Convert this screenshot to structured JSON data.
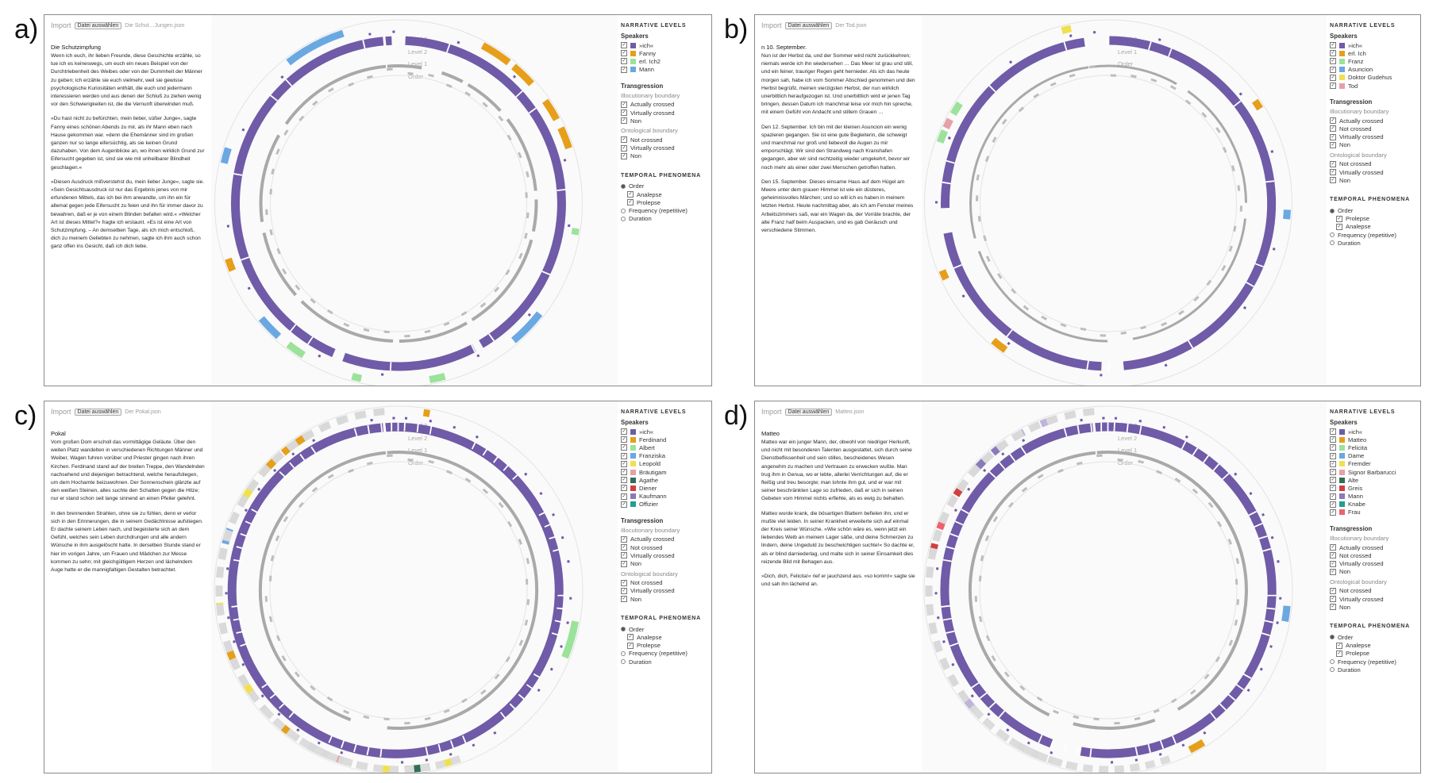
{
  "panels": [
    {
      "letter": "a)",
      "import_label": "Import",
      "button_label": "Datei auswählen",
      "file_name": "Die Schut…Jungen.json",
      "title": "Die Schutzimpfung",
      "text_paragraphs": [
        "Wenn ich euch, ihr lieben Freunde, diese Geschichte erzähle, so tue ich es keineswegs, um euch ein neues Beispiel von der Durchtriebenheit des Weibes oder von der Dummheit der Männer zu geben; ich erzähle sie euch vielmehr, weil sie gewisse psychologische Kuriositäten enthält, die euch und jedermann interessieren werden und aus denen der Schluß zu ziehen wenig vor den Schwierigkeiten ist, die die Vernunft überwinden muß.",
        "»Du hast nicht zu befürchten, mein lieber, süßer Junge«, sagte Fanny eines schönen Abends zu mir, als ihr Mann eben nach Hause gekommen war. »denn die Ehemänner sind im großen ganzen nur so lange eifersüchtig, als sie keinen Grund dazuhaben. Von dem Augenblicke an, wo ihnen wirklich Grund zur Eifersucht gegeben ist, sind sie wie mit unheilbarer Blindheit geschlagen.«",
        "»Diesen Ausdruck mißverstehst du, mein lieber Junge«, sagte sie. »Sein Gesichtsausdruck ist nur das Ergebnis jenes von mir erfundenen Mittels, das ich bei ihm anwandte, um ihn ein für allemal gegen jede Eifersucht zu feien und ihn für immer davor zu bewahren, daß er je von einem Blinden befallen wird.« »Welcher Art ist dieses Mittel?« fragte ich erstaunt. »Es ist eine Art von Schutzimpfung. – An demselben Tage, als ich mich entschloß, dich zu meinem Geliebten zu nehmen, sagte ich ihm auch schon ganz offen ins Gesicht, daß ich dich liebe."
      ],
      "speakers": [
        {
          "label": "»ich«",
          "color": "#6f5ba7"
        },
        {
          "label": "Fanny",
          "color": "#e69f1a"
        },
        {
          "label": "erl. Ich2",
          "color": "#9be29a"
        },
        {
          "label": "Mann",
          "color": "#6aa8e2"
        }
      ],
      "ring": {
        "outer_colors": [
          "#6aa8e2",
          "#e69f1a",
          "#9be29a"
        ],
        "outer_arcs": [
          [
            -38,
            -18,
            "#6aa8e2"
          ],
          [
            28,
            38,
            "#e69f1a"
          ],
          [
            40,
            48,
            "#e69f1a"
          ],
          [
            55,
            62,
            "#e69f1a"
          ],
          [
            65,
            72,
            "#e69f1a"
          ],
          [
            98,
            100,
            "#9be29a"
          ],
          [
            128,
            140,
            "#6aa8e2"
          ],
          [
            165,
            170,
            "#9be29a"
          ],
          [
            192,
            195,
            "#9be29a"
          ],
          [
            212,
            218,
            "#9be29a"
          ],
          [
            222,
            230,
            "#6aa8e2"
          ],
          [
            248,
            252,
            "#e69f1a"
          ],
          [
            283,
            288,
            "#6aa8e2"
          ]
        ],
        "mid_gaps": [
          [
            10,
            18
          ],
          [
            28,
            30
          ],
          [
            48,
            52
          ],
          [
            85,
            88
          ],
          [
            102,
            105
          ],
          [
            148,
            150
          ],
          [
            180,
            182
          ],
          [
            225,
            228
          ],
          [
            258,
            262
          ],
          [
            300,
            305
          ]
        ],
        "inner_gaps": [
          [
            -2,
            2
          ],
          [
            150,
            152
          ],
          [
            200,
            203
          ]
        ]
      },
      "transgression_flags": {
        "illocutionary": [
          "Actually crossed",
          "Virtually crossed",
          "Non"
        ],
        "ontological": [
          "Not crossed",
          "Virtually crossed",
          "Non"
        ]
      }
    },
    {
      "letter": "b)",
      "import_label": "Import",
      "button_label": "Datei auswählen",
      "file_name": "Der Tod.json",
      "title": "n 10. September.",
      "text_paragraphs": [
        "Nun ist der Herbst da, und der Sommer wird nicht zurückkehren; niemals werde ich ihn wiedersehen … Das Meer ist grau und still, und ein feiner, trauriger Regen geht hernieder. Als ich das heute morgen sah, habe ich vom Sommer Abschied genommen und den Herbst begrüßt, meinen vierzigsten Herbst, der nun wirklich unerbittlich heraufgezogen ist. Und unerbittlich wird er jenen Tag bringen, dessen Datum ich manchmal leise vor mich hin spreche, mit einem Gefühl von Andacht und stillem Grauen …",
        "Den 12. September. Ich bin mit der kleinen Asuncion ein wenig spazieren gegangen. Sie ist eine gute Begleiterin, die schweigt und manchmal nur groß und liebevoll die Augen zu mir emporschlägt. Wir sind den Strandweg nach Kranshafen gegangen, aber wir sind rechtzeitig wieder umgekehrt, bevor wir noch mehr als einer oder zwei Menschen getroffen hatten.",
        "Den 15. September. Dieses einsame Haus auf dem Hügel am Meere unter dem grauen Himmel ist wie ein düsteres, geheimnisvolles Märchen; und so will ich es haben in meinem letzten Herbst. Heute nachmittag aber, als ich am Fenster meines Arbeitszimmers saß, war ein Wagen da, der Vorräte brachte, der alte Franz half beim Auspacken, und es gab Geräusch und verschiedene Stimmen."
      ],
      "speakers": [
        {
          "label": "»ich«",
          "color": "#6f5ba7"
        },
        {
          "label": "erl. Ich",
          "color": "#e69f1a"
        },
        {
          "label": "Franz",
          "color": "#9be29a"
        },
        {
          "label": "Asuncion",
          "color": "#6aa8e2"
        },
        {
          "label": "Doktor Gudehus",
          "color": "#f0e050"
        },
        {
          "label": "Tod",
          "color": "#e6a0a8"
        }
      ],
      "ring": {
        "outer_arcs": [
          [
            -60,
            -56,
            "#9be29a"
          ],
          [
            -65,
            -62,
            "#e6a0a8"
          ],
          [
            -15,
            -12,
            "#f0e050"
          ],
          [
            55,
            58,
            "#e69f1a"
          ],
          [
            92,
            95,
            "#6aa8e2"
          ],
          [
            215,
            220,
            "#e69f1a"
          ],
          [
            245,
            248,
            "#e69f1a"
          ],
          [
            290,
            294,
            "#9be29a"
          ]
        ],
        "mid_gaps": [
          [
            30,
            35
          ],
          [
            90,
            96
          ],
          [
            170,
            180
          ],
          [
            250,
            255
          ],
          [
            -80,
            -60
          ]
        ],
        "inner_gaps": [
          [
            -8,
            0
          ],
          [
            175,
            182
          ],
          [
            260,
            268
          ]
        ]
      },
      "transgression_flags": {
        "illocutionary": [
          "Actually crossed",
          "Not crossed",
          "Virtually crossed",
          "Non"
        ],
        "ontological": [
          "Not crossed",
          "Virtually crossed",
          "Non"
        ]
      }
    },
    {
      "letter": "c)",
      "import_label": "Import",
      "button_label": "Datei auswählen",
      "file_name": "Der Pokal.json",
      "title": "Pokal",
      "text_paragraphs": [
        "Vom großen Dom erscholl das vormittägige Geläute. Über den weiten Platz wandelten in verschiedenen Richtungen Männer und Weiber, Wagen fuhren vorüber und Priester gingen nach ihren Kirchen. Ferdinand stand auf der breiten Treppe, den Wandelnden nachsehend und diejenigen betrachtend, welche heraufstiegen, um dem Hochamte beizuwohnen. Der Sonnenschein glänzte auf den weißen Steinen, alles suchte den Schatten gegen die Hitze; nur er stand schon seit lange sinnend an einen Pfeiler gelehnt.",
        "In den brennenden Strahlen, ohne sie zu fühlen, denn er verlor sich in den Erinnerungen, die in seinem Gedächtnisse aufstiegen. Er dachte seinem Leben nach, und begeisterte sich an dem Gefühl, welches sein Leben durchdrungen und alle andern Wünsche in ihm ausgelöscht hatte. In derselben Stunde stand er hier im vorigen Jahre, um Frauen und Mädchen zur Messe kommen zu sehn; mit gleichgültigem Herzen und lächelndem Auge hatte er die mannigfaltigen Gestalten betrachtet."
      ],
      "speakers": [
        {
          "label": "»ich«",
          "color": "#6f5ba7"
        },
        {
          "label": "Ferdinand",
          "color": "#e69f1a"
        },
        {
          "label": "Albert",
          "color": "#9be29a"
        },
        {
          "label": "Franziska",
          "color": "#6aa8e2"
        },
        {
          "label": "Leopold",
          "color": "#f0e050"
        },
        {
          "label": "Bräutigam",
          "color": "#e6a0a8"
        },
        {
          "label": "Agathe",
          "color": "#2f6f58"
        },
        {
          "label": "Diener",
          "color": "#d04040"
        },
        {
          "label": "Kaufmann",
          "color": "#8a7ab8"
        },
        {
          "label": "Offizier",
          "color": "#20a090"
        }
      ],
      "ring": {
        "outer_arcs": [
          [
            -40,
            -30,
            "#e69f1a"
          ],
          [
            -50,
            -44,
            "#e69f1a"
          ],
          [
            -60,
            -55,
            "#f0e050"
          ],
          [
            -75,
            -70,
            "#6aa8e2"
          ],
          [
            -80,
            -77,
            "#e69f1a"
          ],
          [
            -98,
            -94,
            "#f0e050"
          ],
          [
            -115,
            -110,
            "#e69f1a"
          ],
          [
            -125,
            -122,
            "#f0e050"
          ],
          [
            100,
            112,
            "#9be29a"
          ],
          [
            160,
            168,
            "#f0e050"
          ],
          [
            170,
            178,
            "#2f6f58"
          ],
          [
            180,
            186,
            "#f0e050"
          ],
          [
            196,
            200,
            "#e6a0a8"
          ],
          [
            205,
            210,
            "#6aa8e2"
          ],
          [
            215,
            220,
            "#e69f1a"
          ],
          [
            8,
            10,
            "#e69f1a"
          ],
          [
            -20,
            -18,
            "#6aa8e2"
          ]
        ],
        "mid_gaps": [
          [
            -150,
            -10
          ],
          [
            185,
            200
          ]
        ],
        "inner_gaps": [
          [
            -160,
            -5
          ]
        ]
      },
      "transgression_flags": {
        "illocutionary": [
          "Actually crossed",
          "Not crossed",
          "Virtually crossed",
          "Non"
        ],
        "ontological": [
          "Not crossed",
          "Virtually crossed",
          "Non"
        ]
      }
    },
    {
      "letter": "d)",
      "import_label": "Import",
      "button_label": "Datei auswählen",
      "file_name": "Matteo.json",
      "title": "Matteo",
      "text_paragraphs": [
        "Matteo war ein junger Mann, der, obwohl von niedriger Herkunft, und nicht mit besonderen Talenten ausgestattet, sich durch seine Dienstbeflissenheit und sein stilles, bescheidenes Wesen angenehm zu machen und Vertrauen zu erwecken wußte. Man trug ihm in Genua, wo er lebte, allerlei Verrichtungen auf, die er fleißig und treu besorgte; man lohnte ihm gut, und er war mit seiner beschränkten Lage so zufrieden, daß er sich in seinen Gebeten vom Himmel nichts erflehte, als es ewig zu behalten.",
        "Matteo wurde krank, die bösartigen Blattern befielen ihn, und er mußte viel leiden. In seiner Krankheit erweiterte sich auf einmal der Kreis seiner Wünsche. »Wie schön wäre es, wenn jetzt ein liebendes Weib an meinem Lager säße, und deine Schmerzen zu lindern, deine Ungeduld zu beschwichtigen suchte!« So dachte er, als er blind darniederlag, und malte sich in seiner Einsamkeit dies reizende Bild mit Behagen aus.",
        "»Dich, dich, Felicita!« rief er jauchzend aus. »so komm!« sagte sie und sah ihn lächelnd an."
      ],
      "speakers": [
        {
          "label": "»ich«",
          "color": "#6f5ba7"
        },
        {
          "label": "Matteo",
          "color": "#e69f1a"
        },
        {
          "label": "Felicita",
          "color": "#9be29a"
        },
        {
          "label": "Dame",
          "color": "#6aa8e2"
        },
        {
          "label": "Fremder",
          "color": "#f0e050"
        },
        {
          "label": "Signor Barbarucci",
          "color": "#e6a0a8"
        },
        {
          "label": "Alte",
          "color": "#2f6f58"
        },
        {
          "label": "Greis",
          "color": "#d04040"
        },
        {
          "label": "Mann",
          "color": "#8a7ab8"
        },
        {
          "label": "Knabe",
          "color": "#20a090"
        },
        {
          "label": "Frau",
          "color": "#f06070"
        }
      ],
      "ring": {
        "outer_arcs": [
          [
            -50,
            -44,
            "#8a7ab8"
          ],
          [
            -40,
            -36,
            "#8a7ab8"
          ],
          [
            -32,
            -28,
            "#c0b4da"
          ],
          [
            -58,
            -54,
            "#d04040"
          ],
          [
            -70,
            -66,
            "#f06070"
          ],
          [
            -78,
            -75,
            "#d04040"
          ],
          [
            95,
            100,
            "#6aa8e2"
          ],
          [
            148,
            153,
            "#e69f1a"
          ],
          [
            200,
            208,
            "#c0b4da"
          ],
          [
            228,
            232,
            "#c0b4da"
          ],
          [
            -22,
            -18,
            "#c0b4da"
          ]
        ],
        "mid_gaps": [
          [
            -140,
            -10
          ],
          [
            150,
            160
          ],
          [
            195,
            205
          ]
        ],
        "inner_gaps": [
          [
            -150,
            -5
          ],
          [
            190,
            200
          ]
        ]
      },
      "transgression_flags": {
        "illocutionary": [
          "Actually crossed",
          "Not crossed",
          "Virtually crossed",
          "Non"
        ],
        "ontological": [
          "Not crossed",
          "Virtually crossed",
          "Non"
        ]
      }
    }
  ],
  "legend": {
    "narrative_levels": "NARRATIVE LEVELS",
    "speakers": "Speakers",
    "transgression": "Transgression",
    "illocutionary_boundary": "Illocutionary boundary",
    "ontological_boundary": "Ontological boundary",
    "temporal_phenomena": "TEMPORAL PHENOMENA",
    "order": "Order",
    "analepse": "Analepse",
    "prolepse": "Prolepse",
    "frequency": "Frequency (repetitive)",
    "duration": "Duration"
  },
  "levels": [
    "Level 3",
    "Level 2",
    "Level 1",
    "Order"
  ],
  "levels_b": [
    "Level 2",
    "Level 1",
    "Order"
  ],
  "colors": {
    "main": "#6f5ba7",
    "grey": "#a9a9a9",
    "track": "#e3e3e3"
  }
}
